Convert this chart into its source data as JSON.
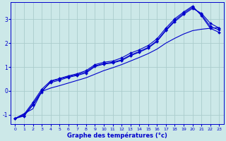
{
  "background_color": "#cce8e8",
  "grid_color": "#aacccc",
  "line_color": "#0000cc",
  "xlabel": "Graphe des températures (°c)",
  "xlim": [
    -0.5,
    23.5
  ],
  "ylim": [
    -1.4,
    3.7
  ],
  "yticks": [
    -1,
    0,
    1,
    2,
    3
  ],
  "xticks": [
    0,
    1,
    2,
    3,
    4,
    5,
    6,
    7,
    8,
    9,
    10,
    11,
    12,
    13,
    14,
    15,
    16,
    17,
    18,
    19,
    20,
    21,
    22,
    23
  ],
  "x": [
    0,
    1,
    2,
    3,
    4,
    5,
    6,
    7,
    8,
    9,
    10,
    11,
    12,
    13,
    14,
    15,
    16,
    17,
    18,
    19,
    20,
    21,
    22,
    23
  ],
  "lines_with_markers": [
    [
      -1.15,
      -1.05,
      -0.6,
      -0.05,
      0.4,
      0.5,
      0.6,
      0.68,
      0.8,
      1.05,
      1.15,
      1.2,
      1.3,
      1.5,
      1.65,
      1.82,
      2.1,
      2.55,
      2.95,
      3.25,
      3.5,
      3.2,
      2.7,
      2.55
    ],
    [
      -1.15,
      -1.02,
      -0.55,
      0.0,
      0.35,
      0.45,
      0.57,
      0.65,
      0.75,
      1.02,
      1.12,
      1.17,
      1.27,
      1.47,
      1.62,
      1.79,
      2.07,
      2.52,
      2.9,
      3.2,
      3.45,
      3.25,
      2.83,
      2.63
    ],
    [
      -1.15,
      -0.98,
      -0.48,
      0.07,
      0.42,
      0.52,
      0.63,
      0.72,
      0.85,
      1.1,
      1.2,
      1.25,
      1.38,
      1.58,
      1.72,
      1.9,
      2.18,
      2.63,
      3.02,
      3.3,
      3.55,
      3.15,
      2.62,
      2.45
    ]
  ],
  "line_straight": [
    -1.15,
    -0.95,
    -0.75,
    -0.02,
    0.12,
    0.22,
    0.33,
    0.44,
    0.55,
    0.7,
    0.85,
    0.97,
    1.1,
    1.25,
    1.4,
    1.56,
    1.75,
    2.0,
    2.2,
    2.38,
    2.52,
    2.58,
    2.62,
    2.65
  ],
  "marker": "D",
  "markersize": 2.0,
  "linewidth": 0.8
}
